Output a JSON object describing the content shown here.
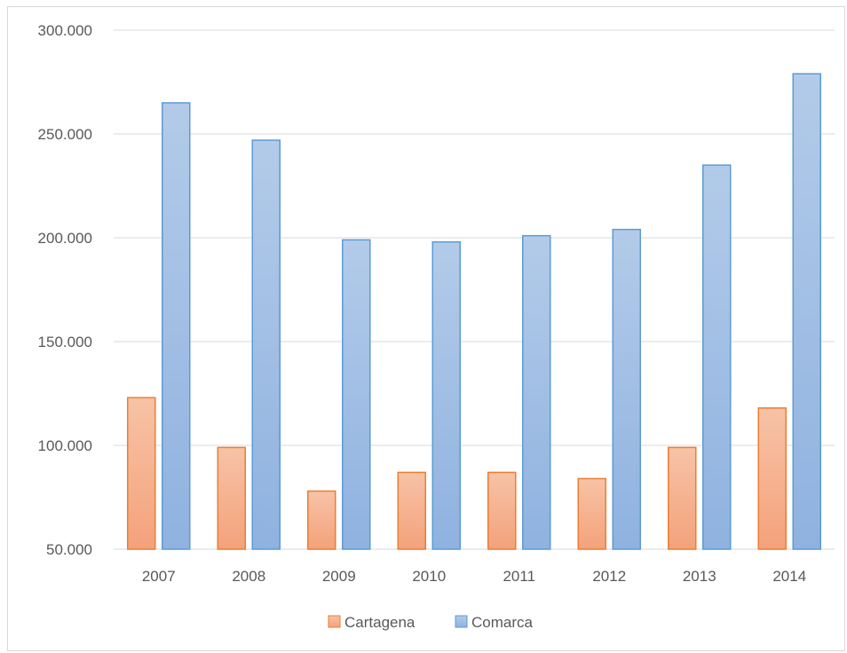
{
  "chart_data": {
    "type": "bar",
    "categories": [
      "2007",
      "2008",
      "2009",
      "2010",
      "2011",
      "2012",
      "2013",
      "2014"
    ],
    "series": [
      {
        "name": "Cartagena",
        "values": [
          123000,
          99000,
          78000,
          87000,
          87000,
          84000,
          99000,
          118000
        ],
        "fill_top": "#f7c3a6",
        "fill_bottom": "#f4a27b",
        "stroke": "#ed7d31"
      },
      {
        "name": "Comarca",
        "values": [
          265000,
          247000,
          199000,
          198000,
          201000,
          204000,
          235000,
          279000
        ],
        "fill_top": "#b3cbe9",
        "fill_bottom": "#8fb2e0",
        "stroke": "#5b9bd5"
      }
    ],
    "ylim": [
      50000,
      300000
    ],
    "yticks": [
      50000,
      100000,
      150000,
      200000,
      250000,
      300000
    ],
    "ytick_labels": [
      "50.000",
      "100.000",
      "150.000",
      "200.000",
      "250.000",
      "300.000"
    ],
    "grid": true,
    "grid_color": "#d9d9d9",
    "legend_position": "bottom",
    "title": "",
    "xlabel": "",
    "ylabel": ""
  }
}
